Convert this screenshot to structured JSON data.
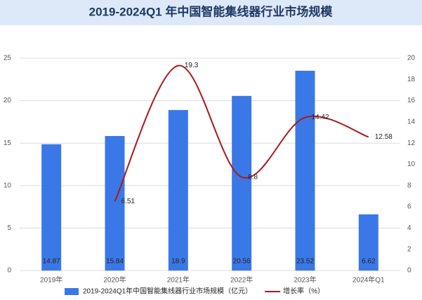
{
  "chart_data": {
    "type": "bar-line",
    "title": "2019-2024Q1 年中国智能集线器行业市场规模",
    "categories": [
      "2019年",
      "2020年",
      "2021年",
      "2022年",
      "2023年",
      "2024年Q1"
    ],
    "series": [
      {
        "name": "2019-2024Q1年中国智能集线器行业市场规模（亿元）",
        "color": "#3b78e7",
        "type": "bar",
        "values": [
          14.87,
          15.84,
          18.9,
          20.56,
          23.52,
          6.62
        ]
      },
      {
        "name": "增长率（%）",
        "color": "#a91b1b",
        "type": "line",
        "axis": "y2",
        "values": [
          null,
          6.51,
          19.3,
          8.8,
          14.42,
          12.58
        ]
      }
    ],
    "ylim": [
      0,
      25
    ],
    "yticks": [
      0,
      5,
      10,
      15,
      20,
      25
    ],
    "y2lim": [
      0,
      20
    ],
    "y2ticks": [
      0,
      2,
      4,
      6,
      8,
      10,
      12,
      14,
      16,
      18,
      20
    ],
    "grid": true,
    "legend": "bottom"
  }
}
